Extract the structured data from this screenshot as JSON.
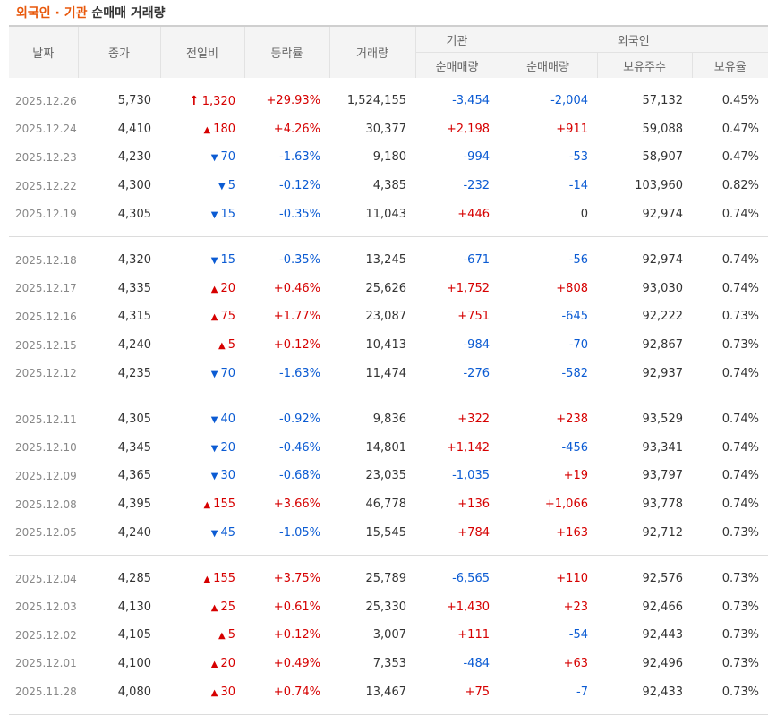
{
  "title": {
    "part1": "외국인 · 기관",
    "part2": " 순매매 거래량"
  },
  "headers": {
    "date": "날짜",
    "close": "종가",
    "change": "전일비",
    "rate": "등락률",
    "volume": "거래량",
    "institution": "기관",
    "foreign": "외국인",
    "inst_net": "순매매량",
    "foreign_net": "순매매량",
    "holdings": "보유주수",
    "ratio": "보유율"
  },
  "colors": {
    "up": "#d60000",
    "down": "#0b5bd3",
    "title_accent": "#e8590c"
  },
  "rows": [
    {
      "date": "2025.12.26",
      "close": "5,730",
      "dir": "limit_up",
      "change": "1,320",
      "rate": "+29.93%",
      "volume": "1,524,155",
      "inst": "-3,454",
      "foreign": "-2,004",
      "holdings": "57,132",
      "ratio": "0.45%"
    },
    {
      "date": "2025.12.24",
      "close": "4,410",
      "dir": "up",
      "change": "180",
      "rate": "+4.26%",
      "volume": "30,377",
      "inst": "+2,198",
      "foreign": "+911",
      "holdings": "59,088",
      "ratio": "0.47%"
    },
    {
      "date": "2025.12.23",
      "close": "4,230",
      "dir": "down",
      "change": "70",
      "rate": "-1.63%",
      "volume": "9,180",
      "inst": "-994",
      "foreign": "-53",
      "holdings": "58,907",
      "ratio": "0.47%"
    },
    {
      "date": "2025.12.22",
      "close": "4,300",
      "dir": "down",
      "change": "5",
      "rate": "-0.12%",
      "volume": "4,385",
      "inst": "-232",
      "foreign": "-14",
      "holdings": "103,960",
      "ratio": "0.82%"
    },
    {
      "date": "2025.12.19",
      "close": "4,305",
      "dir": "down",
      "change": "15",
      "rate": "-0.35%",
      "volume": "11,043",
      "inst": "+446",
      "foreign": "0",
      "holdings": "92,974",
      "ratio": "0.74%"
    },
    {
      "date": "2025.12.18",
      "close": "4,320",
      "dir": "down",
      "change": "15",
      "rate": "-0.35%",
      "volume": "13,245",
      "inst": "-671",
      "foreign": "-56",
      "holdings": "92,974",
      "ratio": "0.74%"
    },
    {
      "date": "2025.12.17",
      "close": "4,335",
      "dir": "up",
      "change": "20",
      "rate": "+0.46%",
      "volume": "25,626",
      "inst": "+1,752",
      "foreign": "+808",
      "holdings": "93,030",
      "ratio": "0.74%"
    },
    {
      "date": "2025.12.16",
      "close": "4,315",
      "dir": "up",
      "change": "75",
      "rate": "+1.77%",
      "volume": "23,087",
      "inst": "+751",
      "foreign": "-645",
      "holdings": "92,222",
      "ratio": "0.73%"
    },
    {
      "date": "2025.12.15",
      "close": "4,240",
      "dir": "up",
      "change": "5",
      "rate": "+0.12%",
      "volume": "10,413",
      "inst": "-984",
      "foreign": "-70",
      "holdings": "92,867",
      "ratio": "0.73%"
    },
    {
      "date": "2025.12.12",
      "close": "4,235",
      "dir": "down",
      "change": "70",
      "rate": "-1.63%",
      "volume": "11,474",
      "inst": "-276",
      "foreign": "-582",
      "holdings": "92,937",
      "ratio": "0.74%"
    },
    {
      "date": "2025.12.11",
      "close": "4,305",
      "dir": "down",
      "change": "40",
      "rate": "-0.92%",
      "volume": "9,836",
      "inst": "+322",
      "foreign": "+238",
      "holdings": "93,529",
      "ratio": "0.74%"
    },
    {
      "date": "2025.12.10",
      "close": "4,345",
      "dir": "down",
      "change": "20",
      "rate": "-0.46%",
      "volume": "14,801",
      "inst": "+1,142",
      "foreign": "-456",
      "holdings": "93,341",
      "ratio": "0.74%"
    },
    {
      "date": "2025.12.09",
      "close": "4,365",
      "dir": "down",
      "change": "30",
      "rate": "-0.68%",
      "volume": "23,035",
      "inst": "-1,035",
      "foreign": "+19",
      "holdings": "93,797",
      "ratio": "0.74%"
    },
    {
      "date": "2025.12.08",
      "close": "4,395",
      "dir": "up",
      "change": "155",
      "rate": "+3.66%",
      "volume": "46,778",
      "inst": "+136",
      "foreign": "+1,066",
      "holdings": "93,778",
      "ratio": "0.74%"
    },
    {
      "date": "2025.12.05",
      "close": "4,240",
      "dir": "down",
      "change": "45",
      "rate": "-1.05%",
      "volume": "15,545",
      "inst": "+784",
      "foreign": "+163",
      "holdings": "92,712",
      "ratio": "0.73%"
    },
    {
      "date": "2025.12.04",
      "close": "4,285",
      "dir": "up",
      "change": "155",
      "rate": "+3.75%",
      "volume": "25,789",
      "inst": "-6,565",
      "foreign": "+110",
      "holdings": "92,576",
      "ratio": "0.73%"
    },
    {
      "date": "2025.12.03",
      "close": "4,130",
      "dir": "up",
      "change": "25",
      "rate": "+0.61%",
      "volume": "25,330",
      "inst": "+1,430",
      "foreign": "+23",
      "holdings": "92,466",
      "ratio": "0.73%"
    },
    {
      "date": "2025.12.02",
      "close": "4,105",
      "dir": "up",
      "change": "5",
      "rate": "+0.12%",
      "volume": "3,007",
      "inst": "+111",
      "foreign": "-54",
      "holdings": "92,443",
      "ratio": "0.73%"
    },
    {
      "date": "2025.12.01",
      "close": "4,100",
      "dir": "up",
      "change": "20",
      "rate": "+0.49%",
      "volume": "7,353",
      "inst": "-484",
      "foreign": "+63",
      "holdings": "92,496",
      "ratio": "0.73%"
    },
    {
      "date": "2025.11.28",
      "close": "4,080",
      "dir": "up",
      "change": "30",
      "rate": "+0.74%",
      "volume": "13,467",
      "inst": "+75",
      "foreign": "-7",
      "holdings": "92,433",
      "ratio": "0.73%"
    }
  ]
}
